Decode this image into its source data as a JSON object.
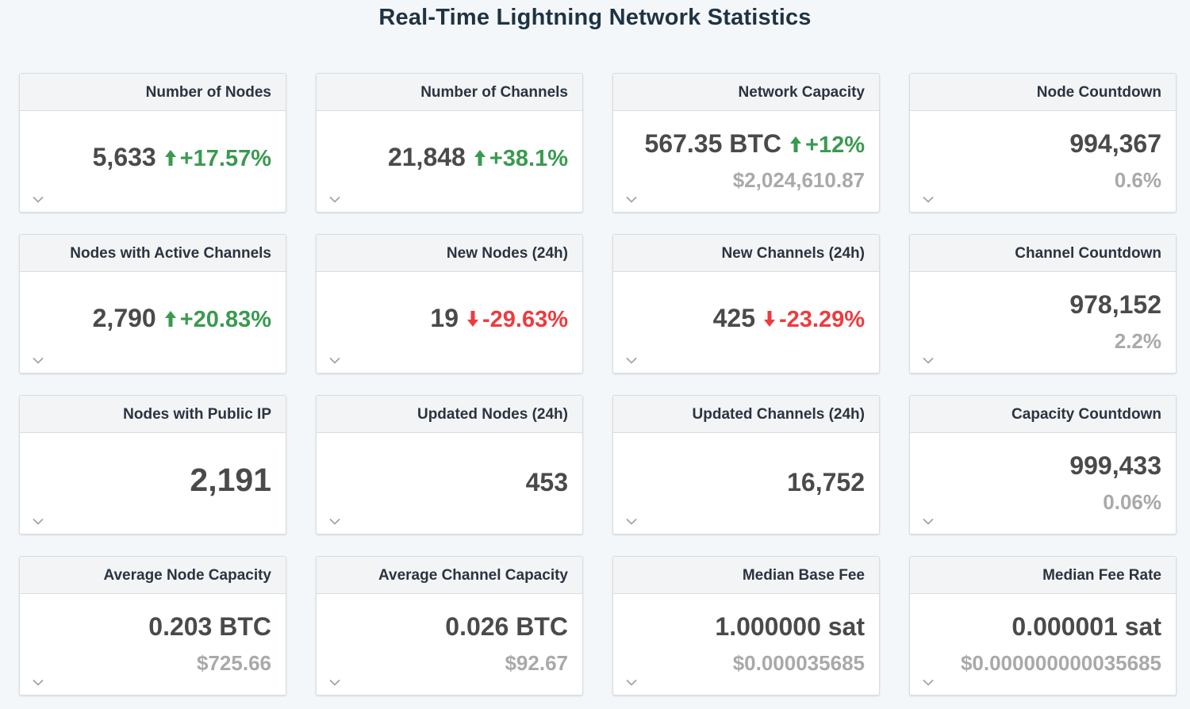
{
  "page": {
    "title": "Real-Time Lightning Network Statistics"
  },
  "colors": {
    "up": "#3a9a4f",
    "down": "#ee3b3f",
    "secondary": "#a9a9a9"
  },
  "cards": [
    {
      "title": "Number of Nodes",
      "value": "5,633",
      "change": "+17.57%",
      "direction": "up"
    },
    {
      "title": "Number of Channels",
      "value": "21,848",
      "change": "+38.1%",
      "direction": "up"
    },
    {
      "title": "Network Capacity",
      "value": "567.35 BTC",
      "change": "+12%",
      "direction": "up",
      "secondary": "$2,024,610.87"
    },
    {
      "title": "Node Countdown",
      "value": "994,367",
      "secondary": "0.6%"
    },
    {
      "title": "Nodes with Active Channels",
      "value": "2,790",
      "change": "+20.83%",
      "direction": "up"
    },
    {
      "title": "New Nodes (24h)",
      "value": "19",
      "change": "-29.63%",
      "direction": "down"
    },
    {
      "title": "New Channels (24h)",
      "value": "425",
      "change": "-23.29%",
      "direction": "down"
    },
    {
      "title": "Channel Countdown",
      "value": "978,152",
      "secondary": "2.2%"
    },
    {
      "title": "Nodes with Public IP",
      "value": "2,191"
    },
    {
      "title": "Updated Nodes (24h)",
      "value": "453"
    },
    {
      "title": "Updated Channels (24h)",
      "value": "16,752"
    },
    {
      "title": "Capacity Countdown",
      "value": "999,433",
      "secondary": "0.06%"
    },
    {
      "title": "Average Node Capacity",
      "value": "0.203 BTC",
      "secondary": "$725.66"
    },
    {
      "title": "Average Channel Capacity",
      "value": "0.026 BTC",
      "secondary": "$92.67"
    },
    {
      "title": "Median Base Fee",
      "value": "1.000000 sat",
      "secondary": "$0.000035685"
    },
    {
      "title": "Median Fee Rate",
      "value": "0.000001 sat",
      "secondary": "$0.000000000035685"
    }
  ]
}
